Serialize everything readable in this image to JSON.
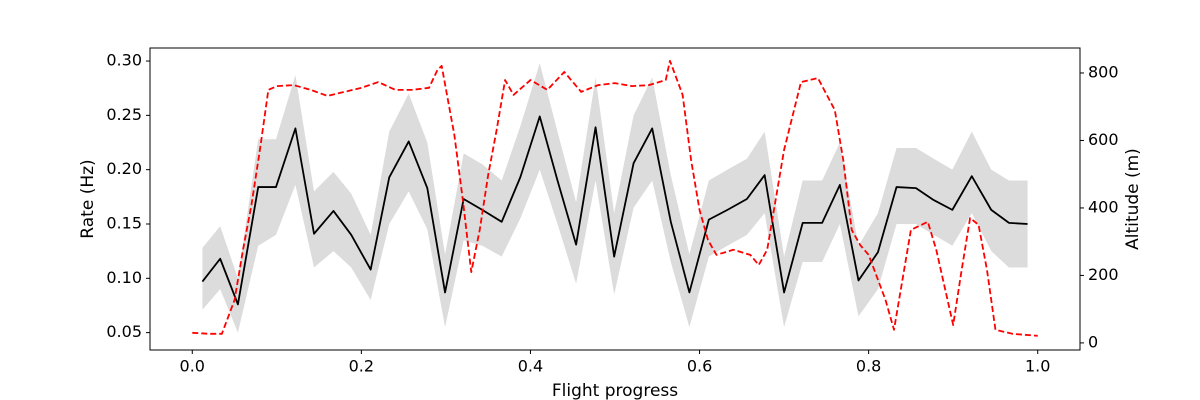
{
  "chart_data": {
    "type": "line",
    "xlabel": "Flight progress",
    "ylabel": "Rate (Hz)",
    "y2label": "Altitude (m)",
    "xlim": [
      -0.05,
      1.05
    ],
    "xticks": [
      {
        "value": 0,
        "label": "0.0"
      },
      0.2,
      0.4,
      0.6,
      0.8,
      {
        "value": 1,
        "label": "1.0"
      }
    ],
    "ylim": [
      0.034,
      0.312
    ],
    "yticks": [
      0.05,
      {
        "value": 0.1,
        "label": "0.10"
      },
      0.15,
      {
        "value": 0.2,
        "label": "0.20"
      },
      0.25,
      {
        "value": 0.3,
        "label": "0.30"
      }
    ],
    "y2lim": [
      -21,
      874
    ],
    "y2ticks": [
      0,
      200,
      400,
      600,
      800
    ],
    "grid": false,
    "series": [
      {
        "color": "#000000",
        "band_color": "#dcdcdc",
        "linestyle": "solid",
        "x": [
          0.012,
          0.033,
          0.054,
          0.078,
          0.099,
          0.122,
          0.144,
          0.167,
          0.188,
          0.211,
          0.233,
          0.256,
          0.278,
          0.299,
          0.321,
          0.343,
          0.366,
          0.388,
          0.411,
          0.432,
          0.454,
          0.477,
          0.499,
          0.522,
          0.544,
          0.566,
          0.588,
          0.611,
          0.633,
          0.656,
          0.677,
          0.7,
          0.722,
          0.745,
          0.766,
          0.788,
          0.811,
          0.833,
          0.856,
          0.877,
          0.899,
          0.922,
          0.945,
          0.966,
          0.988
        ],
        "values": [
          0.097,
          0.118,
          0.076,
          0.184,
          0.184,
          0.238,
          0.141,
          0.162,
          0.14,
          0.108,
          0.193,
          0.226,
          0.183,
          0.087,
          0.173,
          0.163,
          0.152,
          0.193,
          0.249,
          0.19,
          0.131,
          0.239,
          0.12,
          0.206,
          0.238,
          0.152,
          0.087,
          0.154,
          0.163,
          0.173,
          0.195,
          0.087,
          0.151,
          0.151,
          0.186,
          0.098,
          0.124,
          0.184,
          0.183,
          0.172,
          0.163,
          0.194,
          0.163,
          0.151,
          0.15
        ],
        "lower": [
          0.071,
          0.09,
          0.05,
          0.13,
          0.14,
          0.186,
          0.11,
          0.125,
          0.11,
          0.08,
          0.15,
          0.18,
          0.145,
          0.055,
          0.135,
          0.13,
          0.12,
          0.155,
          0.2,
          0.15,
          0.095,
          0.19,
          0.085,
          0.165,
          0.19,
          0.115,
          0.055,
          0.12,
          0.13,
          0.14,
          0.16,
          0.055,
          0.115,
          0.115,
          0.15,
          0.065,
          0.09,
          0.15,
          0.15,
          0.14,
          0.13,
          0.16,
          0.125,
          0.11,
          0.11
        ],
        "upper": [
          0.128,
          0.148,
          0.1,
          0.228,
          0.228,
          0.287,
          0.18,
          0.198,
          0.178,
          0.14,
          0.235,
          0.27,
          0.225,
          0.122,
          0.215,
          0.205,
          0.19,
          0.24,
          0.298,
          0.235,
          0.17,
          0.285,
          0.16,
          0.25,
          0.285,
          0.195,
          0.122,
          0.19,
          0.2,
          0.21,
          0.235,
          0.12,
          0.19,
          0.19,
          0.225,
          0.13,
          0.16,
          0.22,
          0.22,
          0.21,
          0.2,
          0.235,
          0.2,
          0.19,
          0.19
        ]
      },
      {
        "color": "#ff0000",
        "linestyle": "dashed",
        "axis": "y2",
        "x": [
          0,
          0.02,
          0.035,
          0.05,
          0.06,
          0.07,
          0.08,
          0.09,
          0.1,
          0.12,
          0.14,
          0.16,
          0.18,
          0.2,
          0.22,
          0.24,
          0.26,
          0.28,
          0.29,
          0.295,
          0.31,
          0.32,
          0.33,
          0.34,
          0.35,
          0.36,
          0.37,
          0.38,
          0.4,
          0.42,
          0.44,
          0.46,
          0.48,
          0.5,
          0.52,
          0.54,
          0.56,
          0.565,
          0.58,
          0.59,
          0.6,
          0.61,
          0.62,
          0.64,
          0.66,
          0.67,
          0.68,
          0.69,
          0.7,
          0.72,
          0.74,
          0.76,
          0.77,
          0.78,
          0.79,
          0.8,
          0.82,
          0.83,
          0.84,
          0.85,
          0.87,
          0.88,
          0.9,
          0.91,
          0.92,
          0.93,
          0.94,
          0.95,
          0.97,
          1
        ],
        "values": [
          30,
          27,
          27,
          127,
          276,
          409,
          572,
          750,
          761,
          764,
          750,
          732,
          744,
          756,
          773,
          750,
          750,
          756,
          809,
          821,
          616,
          424,
          210,
          335,
          498,
          631,
          779,
          735,
          779,
          750,
          803,
          744,
          764,
          770,
          761,
          764,
          779,
          836,
          735,
          542,
          394,
          305,
          261,
          276,
          261,
          231,
          276,
          424,
          572,
          773,
          785,
          690,
          542,
          335,
          290,
          261,
          127,
          39,
          187,
          335,
          359,
          276,
          53,
          216,
          370,
          350,
          216,
          39,
          27,
          21
        ]
      }
    ]
  }
}
